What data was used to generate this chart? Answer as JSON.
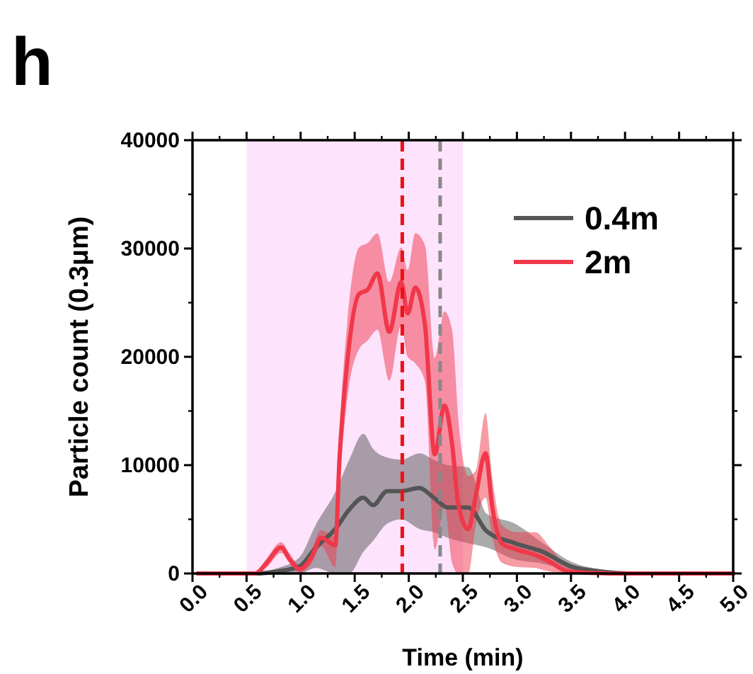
{
  "chart_data": {
    "type": "line",
    "xlabel": "Time (min)",
    "ylabel": "Particle count (0.3μm)",
    "annotations": [
      "h"
    ],
    "xlim": [
      0,
      5
    ],
    "xticks": [
      {
        "value": 0,
        "label": "0.0"
      },
      {
        "value": 0.5,
        "label": "0.5"
      },
      {
        "value": 1,
        "label": "1.0"
      },
      {
        "value": 1.5,
        "label": "1.5"
      },
      {
        "value": 2,
        "label": "2.0"
      },
      {
        "value": 2.5,
        "label": "2.5"
      },
      {
        "value": 3,
        "label": "3.0"
      },
      {
        "value": 3.5,
        "label": "3.5"
      },
      {
        "value": 4,
        "label": "4.0"
      },
      {
        "value": 4.5,
        "label": "4.5"
      },
      {
        "value": 5,
        "label": "5.0"
      }
    ],
    "ylim": [
      0,
      40000
    ],
    "yticks": [
      0,
      10000,
      20000,
      30000,
      40000
    ],
    "legend": "top right",
    "grid": false,
    "line_style": "solid",
    "bands": [
      {
        "axis": "x",
        "from": 0.5,
        "to": 2.5,
        "color": "#fde3fc"
      }
    ],
    "ref_lines": [
      {
        "axis": "x",
        "value": 1.94,
        "color": "#ee1111",
        "line_style": "dashed"
      },
      {
        "axis": "x",
        "value": 2.29,
        "color": "#888888",
        "line_style": "dashed"
      }
    ],
    "series": [
      {
        "name": "0.4m",
        "color": "#555555",
        "x": [
          0.05,
          0.58,
          0.79,
          0.99,
          1.14,
          1.32,
          1.45,
          1.58,
          1.67,
          1.8,
          1.93,
          2.1,
          2.23,
          2.36,
          2.55,
          2.72,
          2.98,
          3.24,
          3.5,
          3.76,
          4.07,
          5.0
        ],
        "values": [
          0,
          0,
          200,
          650,
          2400,
          4100,
          5900,
          7000,
          6300,
          7600,
          7600,
          7900,
          7000,
          6100,
          6100,
          3900,
          2800,
          2000,
          650,
          200,
          0,
          0
        ],
        "upper": [
          0,
          100,
          500,
          1500,
          4500,
          7500,
          10500,
          12900,
          11500,
          10700,
          10500,
          11100,
          10500,
          10000,
          9800,
          5500,
          4600,
          2800,
          1100,
          400,
          100,
          50
        ],
        "lower": [
          0,
          0,
          0,
          0,
          500,
          0,
          0,
          2000,
          3000,
          4600,
          5000,
          4100,
          3800,
          3300,
          2800,
          2400,
          1300,
          900,
          200,
          0,
          0,
          0
        ]
      },
      {
        "name": "2m",
        "color": "#f0384a",
        "x": [
          0.05,
          0.58,
          0.68,
          0.82,
          0.9,
          0.99,
          1.1,
          1.19,
          1.32,
          1.36,
          1.43,
          1.54,
          1.62,
          1.71,
          1.82,
          1.93,
          1.99,
          2.06,
          2.15,
          2.24,
          2.33,
          2.4,
          2.46,
          2.55,
          2.62,
          2.71,
          2.77,
          2.86,
          3.0,
          3.17,
          3.3,
          3.47,
          3.86,
          5.0
        ],
        "values": [
          0,
          0,
          900,
          2400,
          1300,
          400,
          1500,
          3300,
          2600,
          10700,
          19400,
          25800,
          26200,
          27700,
          22300,
          26900,
          24000,
          26400,
          22900,
          11000,
          15500,
          12000,
          6300,
          4100,
          7200,
          11100,
          6300,
          2800,
          2200,
          1700,
          1100,
          200,
          0,
          0
        ],
        "upper": [
          0,
          100,
          1300,
          2900,
          1800,
          800,
          2200,
          4000,
          3400,
          13000,
          23000,
          30100,
          30500,
          31400,
          26900,
          30100,
          28000,
          31400,
          30300,
          19900,
          24200,
          22500,
          14000,
          9000,
          9500,
          14800,
          9000,
          4500,
          3800,
          3800,
          2500,
          700,
          100,
          100
        ],
        "lower": [
          0,
          0,
          500,
          1900,
          900,
          100,
          900,
          2500,
          600,
          8000,
          16000,
          20700,
          21500,
          22500,
          17800,
          22900,
          20000,
          19400,
          17700,
          2200,
          6300,
          1000,
          0,
          0,
          4500,
          7000,
          3500,
          1000,
          600,
          500,
          200,
          0,
          0,
          0
        ]
      }
    ]
  }
}
